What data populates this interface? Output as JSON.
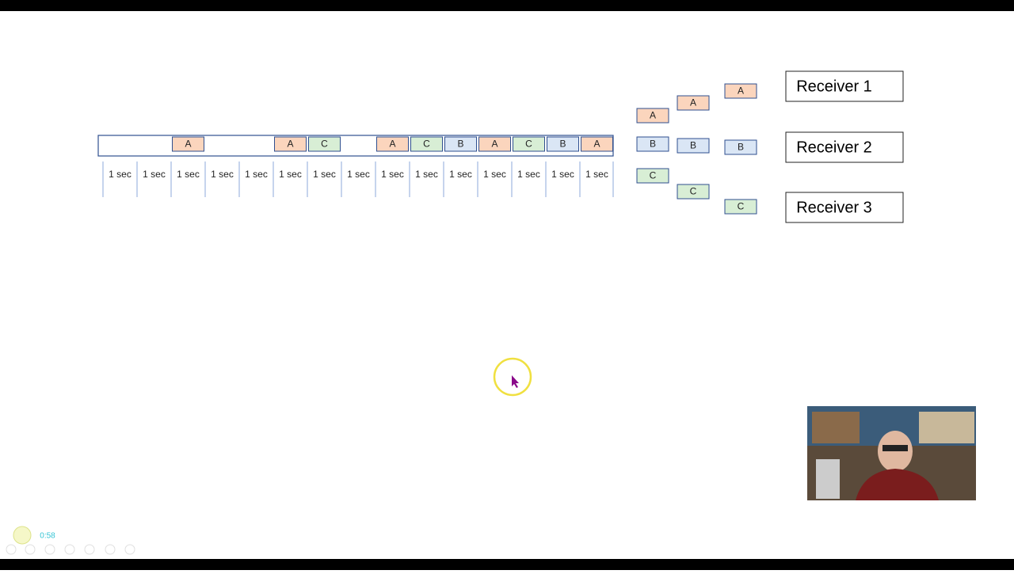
{
  "timeline": {
    "slots": [
      {
        "label": "1 sec"
      },
      {
        "label": "1 sec"
      },
      {
        "label": "1 sec",
        "packet": "A"
      },
      {
        "label": "1 sec"
      },
      {
        "label": "1 sec"
      },
      {
        "label": "1 sec",
        "packet": "A"
      },
      {
        "label": "1 sec",
        "packet": "C"
      },
      {
        "label": "1 sec"
      },
      {
        "label": "1 sec",
        "packet": "A"
      },
      {
        "label": "1 sec",
        "packet": "C"
      },
      {
        "label": "1 sec",
        "packet": "B"
      },
      {
        "label": "1 sec",
        "packet": "A"
      },
      {
        "label": "1 sec",
        "packet": "C"
      },
      {
        "label": "1 sec",
        "packet": "B"
      },
      {
        "label": "1 sec",
        "packet": "A"
      }
    ]
  },
  "queues": [
    [
      "A",
      "B",
      "C"
    ],
    [
      "A",
      "B",
      "C"
    ],
    [
      "A",
      "B",
      "C"
    ]
  ],
  "receivers": [
    "Receiver 1",
    "Receiver 2",
    "Receiver 3"
  ],
  "player": {
    "time": "0:58"
  }
}
